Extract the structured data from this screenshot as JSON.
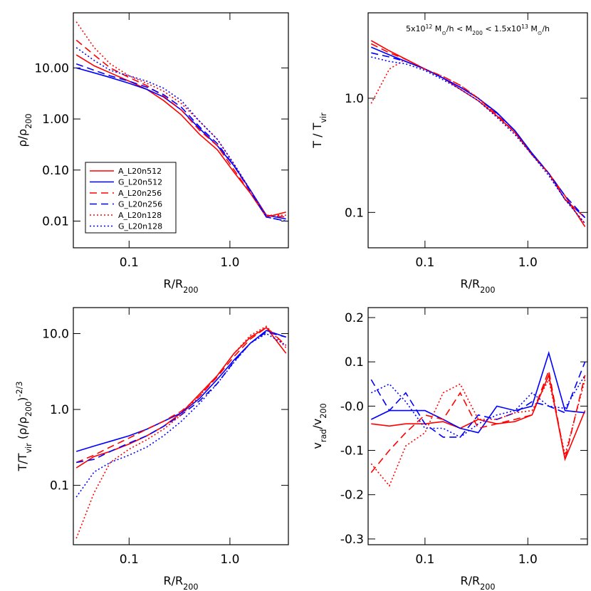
{
  "chart_data": [
    {
      "type": "line",
      "xlog": true,
      "ylog": true,
      "xlabel": [
        {
          "text": "R/R"
        },
        {
          "text": "200",
          "shift": "sub"
        }
      ],
      "ylabel": [
        {
          "text": "ρ/ρ"
        },
        {
          "text": "200",
          "shift": "sub"
        }
      ],
      "xlim": [
        0.028,
        3.8
      ],
      "ylim": [
        0.003,
        120
      ],
      "xticks": [
        0.1,
        {
          "value": 1,
          "label": "1.0"
        }
      ],
      "yticks": [
        {
          "value": 10,
          "label": "10.00"
        },
        {
          "value": 1,
          "label": "1.00"
        },
        {
          "value": 0.1,
          "label": "0.10"
        },
        {
          "value": 0.01,
          "label": "0.01"
        }
      ],
      "legend": "lower left",
      "x": [
        0.03,
        0.045,
        0.065,
        0.1,
        0.15,
        0.22,
        0.33,
        0.5,
        0.75,
        1.1,
        1.6,
        2.3,
        3.6
      ],
      "series": [
        {
          "name": "A_L20n512",
          "color": "#ff0000",
          "dash": "solid",
          "values": [
            18,
            11,
            8,
            5.5,
            3.8,
            2.3,
            1.2,
            0.5,
            0.25,
            0.09,
            0.035,
            0.012,
            0.015
          ]
        },
        {
          "name": "G_L20n512",
          "color": "#0000ff",
          "dash": "solid",
          "values": [
            10,
            8,
            6.5,
            5,
            3.8,
            2.7,
            1.5,
            0.65,
            0.3,
            0.12,
            0.04,
            0.013,
            0.011
          ]
        },
        {
          "name": "A_L20n256",
          "color": "#ff0000",
          "dash": "dashed",
          "values": [
            35,
            18,
            10,
            6.5,
            4.5,
            2.8,
            1.5,
            0.6,
            0.3,
            0.1,
            0.035,
            0.013,
            0.012
          ]
        },
        {
          "name": "G_L20n256",
          "color": "#0000ff",
          "dash": "dashed",
          "values": [
            12,
            9,
            7,
            5.5,
            4.2,
            3,
            1.7,
            0.7,
            0.33,
            0.12,
            0.038,
            0.012,
            0.01
          ]
        },
        {
          "name": "A_L20n128",
          "color": "#ff0000",
          "dash": "dotted",
          "values": [
            80,
            25,
            12,
            7,
            5,
            3.5,
            2,
            0.9,
            0.4,
            0.13,
            0.04,
            0.013,
            0.013
          ]
        },
        {
          "name": "G_L20n128",
          "color": "#0000ff",
          "dash": "dotted",
          "values": [
            25,
            14,
            9,
            7,
            5.5,
            4,
            2.3,
            0.9,
            0.4,
            0.13,
            0.04,
            0.012,
            0.01
          ]
        }
      ]
    },
    {
      "type": "line",
      "xlog": true,
      "ylog": true,
      "annotation": [
        {
          "text": "5x10"
        },
        {
          "text": "12",
          "shift": "sup"
        },
        {
          "text": " M"
        },
        {
          "text": "⊙",
          "shift": "sub"
        },
        {
          "text": "/h < M"
        },
        {
          "text": "200",
          "shift": "sub"
        },
        {
          "text": " < 1.5x10"
        },
        {
          "text": "13",
          "shift": "sup"
        },
        {
          "text": " M"
        },
        {
          "text": "⊙",
          "shift": "sub"
        },
        {
          "text": "/h"
        }
      ],
      "xlabel": [
        {
          "text": "R/R"
        },
        {
          "text": "200",
          "shift": "sub"
        }
      ],
      "ylabel": [
        {
          "text": "T / T"
        },
        {
          "text": "vir",
          "shift": "sub"
        }
      ],
      "xlim": [
        0.028,
        3.8
      ],
      "ylim": [
        0.049,
        5.6
      ],
      "xticks": [
        0.1,
        {
          "value": 1,
          "label": "1.0"
        }
      ],
      "yticks": [
        {
          "value": 1,
          "label": "1.0"
        },
        0.1
      ],
      "x": [
        0.03,
        0.045,
        0.065,
        0.1,
        0.15,
        0.22,
        0.33,
        0.5,
        0.75,
        1.1,
        1.6,
        2.3,
        3.6
      ],
      "series": [
        {
          "color": "#ff0000",
          "dash": "solid",
          "values": [
            3.2,
            2.6,
            2.2,
            1.8,
            1.5,
            1.2,
            0.95,
            0.7,
            0.5,
            0.32,
            0.22,
            0.14,
            0.075
          ]
        },
        {
          "color": "#0000ff",
          "dash": "solid",
          "values": [
            2.8,
            2.4,
            2.1,
            1.8,
            1.5,
            1.25,
            1.0,
            0.75,
            0.52,
            0.33,
            0.22,
            0.13,
            0.09
          ]
        },
        {
          "color": "#ff0000",
          "dash": "dashed",
          "values": [
            3.0,
            2.5,
            2.2,
            1.8,
            1.55,
            1.3,
            1.0,
            0.72,
            0.5,
            0.32,
            0.22,
            0.13,
            0.09
          ]
        },
        {
          "color": "#0000ff",
          "dash": "dashed",
          "values": [
            2.5,
            2.3,
            2.1,
            1.8,
            1.5,
            1.25,
            1.0,
            0.74,
            0.52,
            0.33,
            0.22,
            0.14,
            0.09
          ]
        },
        {
          "color": "#ff0000",
          "dash": "dotted",
          "values": [
            0.9,
            1.8,
            2.2,
            1.8,
            1.55,
            1.3,
            1.0,
            0.7,
            0.5,
            0.32,
            0.22,
            0.13,
            0.08
          ]
        },
        {
          "color": "#0000ff",
          "dash": "dotted",
          "values": [
            2.3,
            2.1,
            2.0,
            1.75,
            1.45,
            1.2,
            0.95,
            0.68,
            0.48,
            0.32,
            0.21,
            0.13,
            0.08
          ]
        }
      ]
    },
    {
      "type": "line",
      "xlog": true,
      "ylog": true,
      "xlabel": [
        {
          "text": "R/R"
        },
        {
          "text": "200",
          "shift": "sub"
        }
      ],
      "ylabel": [
        {
          "text": "T/T"
        },
        {
          "text": "vir",
          "shift": "sub"
        },
        {
          "text": " (ρ/ρ"
        },
        {
          "text": "200",
          "shift": "sub"
        },
        {
          "text": ")"
        },
        {
          "text": "-2/3",
          "shift": "sup"
        }
      ],
      "xlim": [
        0.028,
        3.8
      ],
      "ylim": [
        0.0165,
        22
      ],
      "xticks": [
        0.1,
        {
          "value": 1,
          "label": "1.0"
        }
      ],
      "yticks": [
        {
          "value": 10,
          "label": "10.0"
        },
        {
          "value": 1,
          "label": "1.0"
        },
        0.1
      ],
      "x": [
        0.03,
        0.045,
        0.065,
        0.1,
        0.15,
        0.22,
        0.33,
        0.5,
        0.75,
        1.1,
        1.6,
        2.3,
        3.6
      ],
      "series": [
        {
          "color": "#ff0000",
          "dash": "solid",
          "values": [
            0.17,
            0.24,
            0.28,
            0.35,
            0.45,
            0.6,
            0.9,
            1.6,
            2.8,
            5.5,
            9,
            12,
            5.5
          ]
        },
        {
          "color": "#0000ff",
          "dash": "solid",
          "values": [
            0.28,
            0.33,
            0.38,
            0.45,
            0.55,
            0.7,
            0.9,
            1.4,
            2.5,
            4.5,
            7.5,
            11,
            9
          ]
        },
        {
          "color": "#ff0000",
          "dash": "dashed",
          "values": [
            0.2,
            0.25,
            0.32,
            0.42,
            0.55,
            0.7,
            0.95,
            1.5,
            2.7,
            5,
            8.5,
            12,
            7
          ]
        },
        {
          "color": "#0000ff",
          "dash": "dashed",
          "values": [
            0.2,
            0.22,
            0.28,
            0.36,
            0.45,
            0.6,
            0.85,
            1.3,
            2.2,
            4.3,
            7.5,
            10.5,
            9
          ]
        },
        {
          "color": "#ff0000",
          "dash": "dotted",
          "values": [
            0.02,
            0.08,
            0.2,
            0.3,
            0.4,
            0.55,
            0.85,
            1.5,
            2.8,
            5.5,
            9.5,
            12.5,
            6.5
          ]
        },
        {
          "color": "#0000ff",
          "dash": "dotted",
          "values": [
            0.07,
            0.15,
            0.2,
            0.25,
            0.32,
            0.45,
            0.7,
            1.2,
            2.2,
            4.2,
            7.5,
            10,
            7
          ]
        }
      ]
    },
    {
      "type": "line",
      "xlog": true,
      "ylog": false,
      "xlabel": [
        {
          "text": "R/R"
        },
        {
          "text": "200",
          "shift": "sub"
        }
      ],
      "ylabel": [
        {
          "text": "v"
        },
        {
          "text": "rad",
          "shift": "sub"
        },
        {
          "text": "/v"
        },
        {
          "text": "200",
          "shift": "sub"
        }
      ],
      "xlim": [
        0.028,
        3.8
      ],
      "ylim": [
        -0.313,
        0.2225
      ],
      "xticks": [
        0.1,
        {
          "value": 1,
          "label": "1.0"
        }
      ],
      "yticks": [
        0.2,
        0.1,
        {
          "value": 0,
          "label": "-0.0"
        },
        -0.1,
        -0.2,
        -0.3
      ],
      "x": [
        0.03,
        0.045,
        0.065,
        0.1,
        0.15,
        0.22,
        0.33,
        0.5,
        0.75,
        1.1,
        1.6,
        2.3,
        3.6
      ],
      "series": [
        {
          "color": "#ff0000",
          "dash": "solid",
          "values": [
            -0.04,
            -0.045,
            -0.04,
            -0.04,
            -0.035,
            -0.05,
            -0.03,
            -0.04,
            -0.035,
            -0.02,
            0.07,
            -0.12,
            -0.01
          ]
        },
        {
          "color": "#0000ff",
          "dash": "solid",
          "values": [
            -0.03,
            -0.01,
            -0.01,
            -0.01,
            -0.03,
            -0.05,
            -0.06,
            0,
            -0.01,
            0,
            0.12,
            -0.01,
            -0.015
          ]
        },
        {
          "color": "#ff0000",
          "dash": "dashed",
          "values": [
            -0.15,
            -0.1,
            -0.06,
            -0.02,
            -0.03,
            0.03,
            -0.05,
            -0.04,
            -0.03,
            -0.02,
            0.08,
            -0.12,
            0.07
          ]
        },
        {
          "color": "#0000ff",
          "dash": "dashed",
          "values": [
            0.06,
            -0.01,
            0.03,
            -0.04,
            -0.07,
            -0.07,
            -0.02,
            -0.03,
            -0.015,
            0.01,
            0,
            -0.015,
            0.1
          ]
        },
        {
          "color": "#ff0000",
          "dash": "dotted",
          "values": [
            -0.13,
            -0.18,
            -0.09,
            -0.06,
            0.03,
            0.05,
            -0.03,
            -0.03,
            -0.015,
            -0.01,
            0.06,
            -0.11,
            0.06
          ]
        },
        {
          "color": "#0000ff",
          "dash": "dotted",
          "values": [
            0.03,
            0.05,
            0.01,
            -0.05,
            -0.05,
            -0.07,
            -0.04,
            -0.02,
            -0.01,
            0.03,
            0,
            -0.005,
            0.07
          ]
        }
      ]
    }
  ]
}
